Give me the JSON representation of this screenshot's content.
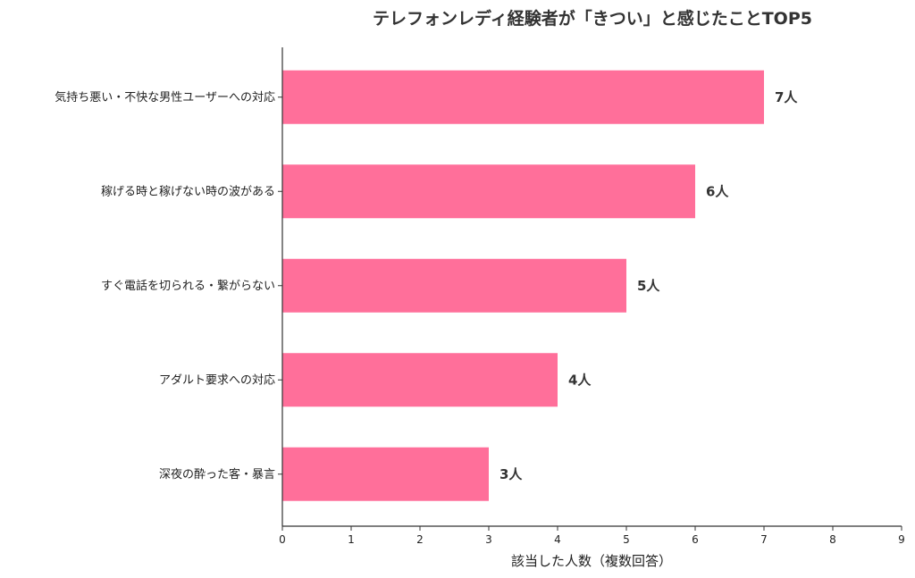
{
  "chart_data": {
    "type": "bar",
    "orientation": "horizontal",
    "title": "テレフォンレディ経験者が「きつい」と感じたことTOP5",
    "xlabel": "該当した人数（複数回答）",
    "ylabel": "",
    "categories": [
      "気持ち悪い・不快な男性ユーザーへの対応",
      "稼げる時と稼げない時の波がある",
      "すぐ電話を切られる・繋がらない",
      "アダルト要求への対応",
      "深夜の酔った客・暴言"
    ],
    "values": [
      7,
      6,
      5,
      4,
      3
    ],
    "data_labels": [
      "7人",
      "6人",
      "5人",
      "4人",
      "3人"
    ],
    "xlim": [
      0,
      9
    ],
    "xticks": [
      "0",
      "1",
      "2",
      "3",
      "4",
      "5",
      "6",
      "7",
      "8",
      "9"
    ],
    "bar_color": "#ff6f9a",
    "grid": false,
    "legend": "none"
  }
}
